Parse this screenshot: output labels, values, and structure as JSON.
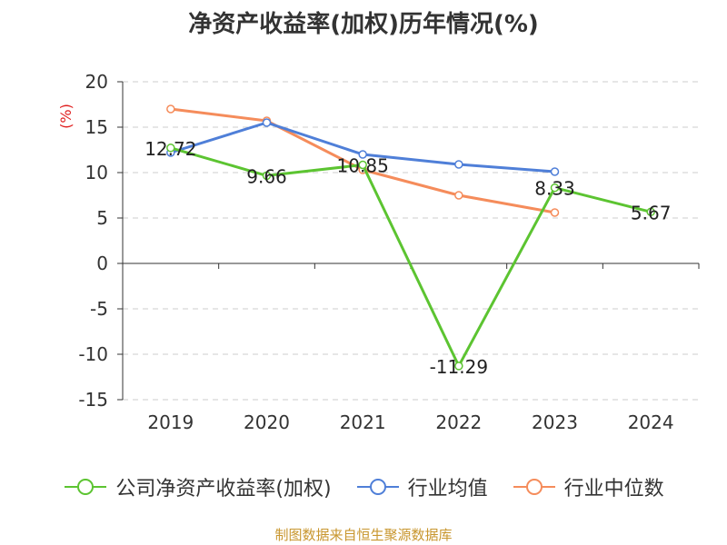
{
  "chart_data": {
    "type": "line",
    "title": "净资产收益率(加权)历年情况(%)",
    "ylabel": "(%)",
    "xlabel": "",
    "ylim": [
      -15,
      20
    ],
    "yticks": [
      20,
      15,
      10,
      5,
      0,
      -5,
      -10,
      -15
    ],
    "categories": [
      "2019",
      "2020",
      "2021",
      "2022",
      "2023",
      "2024"
    ],
    "series": [
      {
        "name": "公司净资产收益率(加权)",
        "color": "#5cc431",
        "values": [
          12.72,
          9.66,
          10.85,
          -11.29,
          8.33,
          5.67
        ],
        "labels": [
          "12.72",
          "9.66",
          "10.85",
          "-11.29",
          "8.33",
          "5.67"
        ]
      },
      {
        "name": "行业均值",
        "color": "#4f7fd8",
        "values": [
          12.2,
          15.5,
          12.0,
          10.9,
          10.1,
          null
        ]
      },
      {
        "name": "行业中位数",
        "color": "#f58c5b",
        "values": [
          17.0,
          15.7,
          10.3,
          7.5,
          5.6,
          null
        ]
      }
    ],
    "grid": true
  },
  "source": "制图数据来自恒生聚源数据库"
}
